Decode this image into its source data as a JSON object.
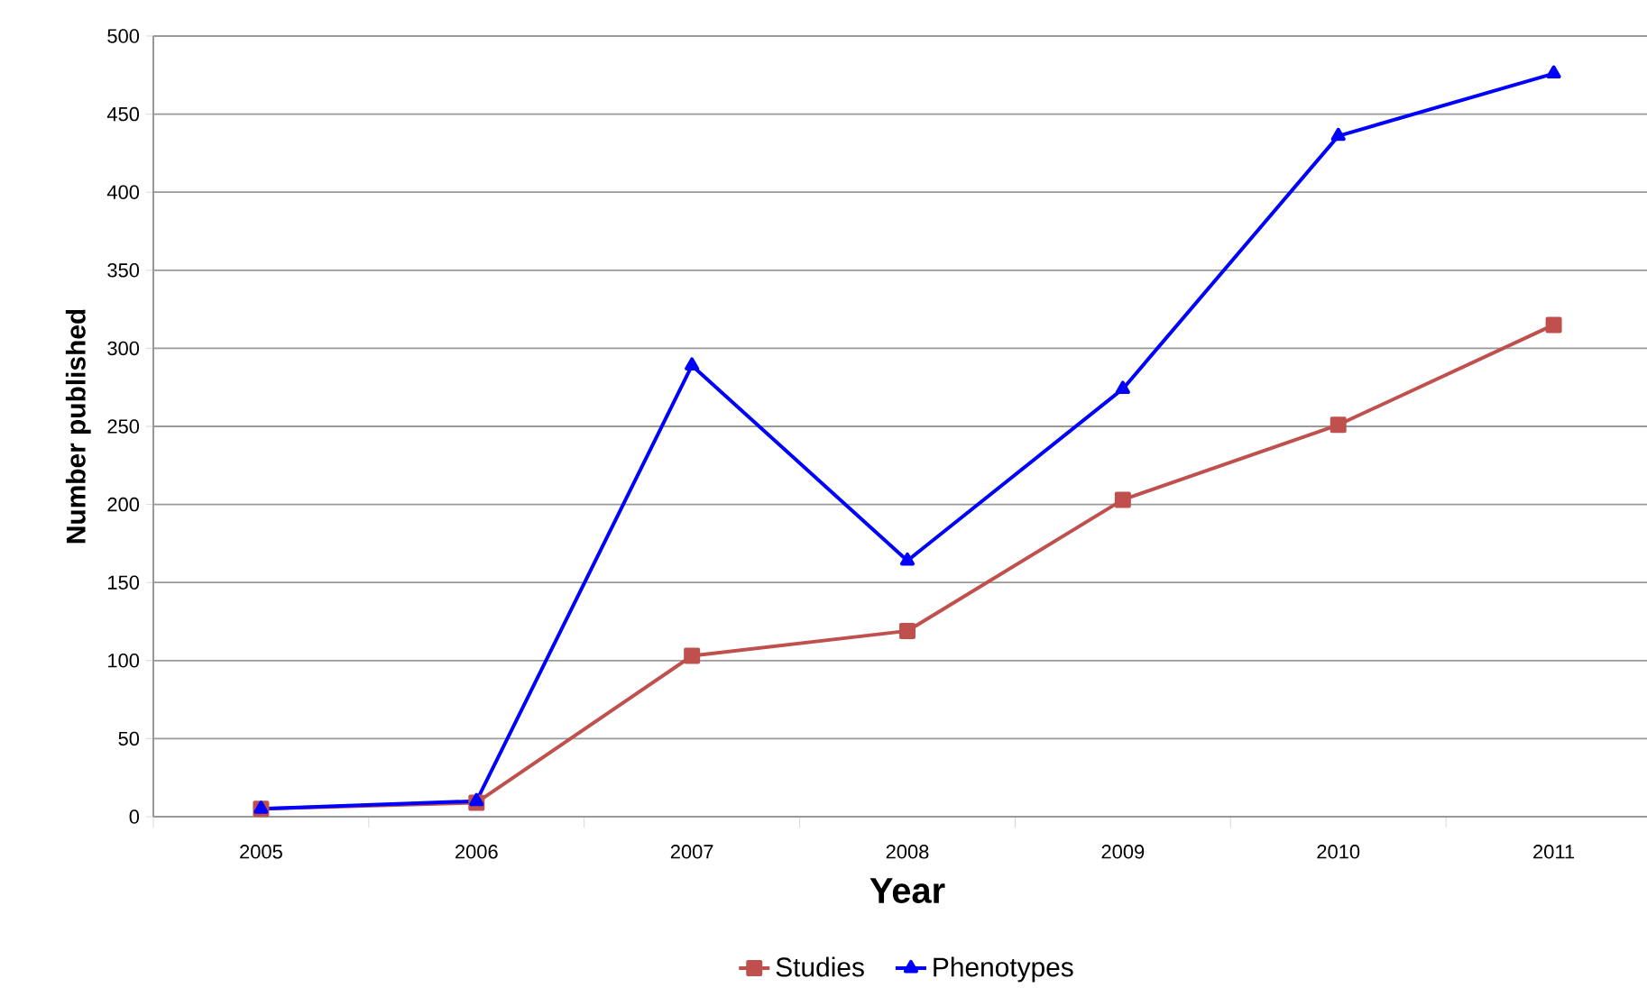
{
  "chart_data": {
    "type": "line",
    "xlabel": "Year",
    "ylabel": "Number published",
    "categories": [
      "2005",
      "2006",
      "2007",
      "2008",
      "2009",
      "2010",
      "2011"
    ],
    "series": [
      {
        "name": "Studies",
        "color": "#c0504d",
        "marker": "square",
        "values": [
          5,
          9,
          103,
          119,
          203,
          251,
          315
        ]
      },
      {
        "name": "Phenotypes",
        "color": "#0000ff",
        "marker": "triangle",
        "values": [
          5,
          10,
          289,
          164,
          274,
          436,
          476
        ]
      }
    ],
    "ylim": [
      0,
      500
    ],
    "yticks": [
      0,
      50,
      100,
      150,
      200,
      250,
      300,
      350,
      400,
      450,
      500
    ],
    "grid": "y",
    "legend": "bottom",
    "line_style": "solid"
  }
}
